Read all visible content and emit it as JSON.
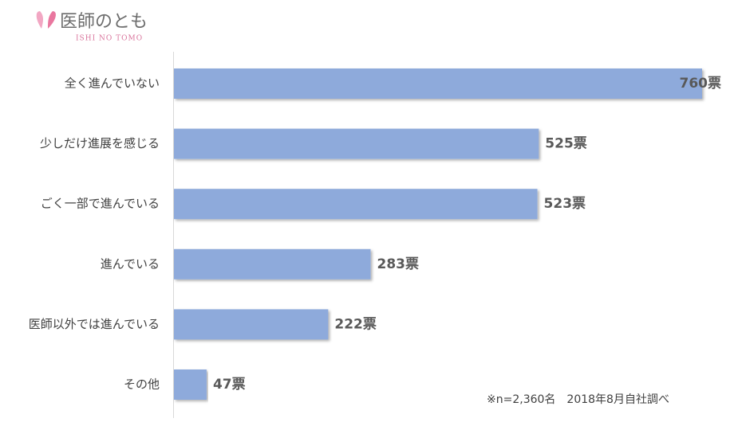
{
  "logo": {
    "name": "医師のとも",
    "subtitle": "ISHI NO TOMO"
  },
  "chart_data": {
    "type": "bar",
    "orientation": "horizontal",
    "categories": [
      "全く進んでいない",
      "少しだけ進展を感じる",
      "ごく一部で進んでいる",
      "進んでいる",
      "医師以外では進んでいる",
      "その他"
    ],
    "values": [
      760,
      525,
      523,
      283,
      222,
      47
    ],
    "value_labels": [
      "760票",
      "525票",
      "523票",
      "283票",
      "222票",
      "47票"
    ],
    "color": "#8eaadb",
    "note": "※n=2,360名　2018年8月自社調べ"
  }
}
